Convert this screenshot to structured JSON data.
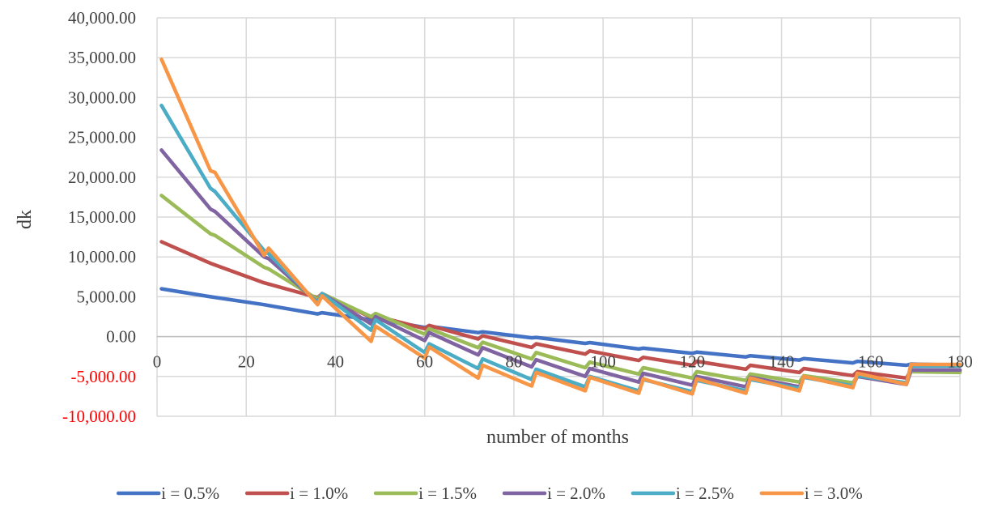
{
  "chart_data": {
    "type": "line",
    "title": "",
    "xlabel": "number of months",
    "ylabel": "dk",
    "xlim": [
      0,
      180
    ],
    "ylim": [
      -10000,
      40000
    ],
    "x_ticks": [
      "0",
      "20",
      "40",
      "60",
      "80",
      "100",
      "120",
      "140",
      "160",
      "180"
    ],
    "y_ticks": [
      "40,000.00",
      "35,000.00",
      "30,000.00",
      "25,000.00",
      "20,000.00",
      "15,000.00",
      "10,000.00",
      "5,000.00",
      "0.00",
      "-5,000.00",
      "-10,000.00"
    ],
    "grid": true,
    "legend_position": "bottom",
    "series": [
      {
        "name": "i = 0.5%",
        "color": "#4472c4",
        "points": [
          [
            1,
            6000
          ],
          [
            12,
            5000
          ],
          [
            24,
            4000
          ],
          [
            25,
            3900
          ],
          [
            36,
            2850
          ],
          [
            37,
            3000
          ],
          [
            48,
            2100
          ],
          [
            49,
            2200
          ],
          [
            60,
            1150
          ],
          [
            61,
            1300
          ],
          [
            72,
            500
          ],
          [
            73,
            600
          ],
          [
            84,
            -150
          ],
          [
            85,
            -100
          ],
          [
            96,
            -850
          ],
          [
            97,
            -750
          ],
          [
            108,
            -1550
          ],
          [
            109,
            -1450
          ],
          [
            120,
            -2100
          ],
          [
            121,
            -1950
          ],
          [
            132,
            -2550
          ],
          [
            133,
            -2400
          ],
          [
            144,
            -2950
          ],
          [
            145,
            -2750
          ],
          [
            156,
            -3300
          ],
          [
            157,
            -3100
          ],
          [
            168,
            -3600
          ],
          [
            169,
            -3450
          ],
          [
            180,
            -3600
          ]
        ]
      },
      {
        "name": "i = 1.0%",
        "color": "#c0504d",
        "points": [
          [
            1,
            11900
          ],
          [
            12,
            9200
          ],
          [
            24,
            6750
          ],
          [
            25,
            6600
          ],
          [
            36,
            4900
          ],
          [
            37,
            5400
          ],
          [
            48,
            2400
          ],
          [
            49,
            2600
          ],
          [
            60,
            1000
          ],
          [
            61,
            1400
          ],
          [
            72,
            -300
          ],
          [
            73,
            100
          ],
          [
            84,
            -1350
          ],
          [
            85,
            -900
          ],
          [
            96,
            -2200
          ],
          [
            97,
            -1800
          ],
          [
            108,
            -3000
          ],
          [
            109,
            -2600
          ],
          [
            120,
            -3600
          ],
          [
            121,
            -3100
          ],
          [
            132,
            -4100
          ],
          [
            133,
            -3600
          ],
          [
            144,
            -4500
          ],
          [
            145,
            -4000
          ],
          [
            156,
            -4900
          ],
          [
            157,
            -4400
          ],
          [
            168,
            -5200
          ],
          [
            169,
            -4200
          ],
          [
            180,
            -4300
          ]
        ]
      },
      {
        "name": "i = 1.5%",
        "color": "#9bbb59",
        "points": [
          [
            1,
            17700
          ],
          [
            12,
            12900
          ],
          [
            13,
            12700
          ],
          [
            24,
            8700
          ],
          [
            25,
            8500
          ],
          [
            36,
            4700
          ],
          [
            37,
            5400
          ],
          [
            48,
            2500
          ],
          [
            49,
            2900
          ],
          [
            60,
            300
          ],
          [
            61,
            1000
          ],
          [
            72,
            -1400
          ],
          [
            73,
            -700
          ],
          [
            84,
            -2800
          ],
          [
            85,
            -2000
          ],
          [
            96,
            -3900
          ],
          [
            97,
            -3200
          ],
          [
            108,
            -4700
          ],
          [
            109,
            -3900
          ],
          [
            120,
            -5200
          ],
          [
            121,
            -4400
          ],
          [
            132,
            -5500
          ],
          [
            133,
            -4700
          ],
          [
            144,
            -5700
          ],
          [
            145,
            -4900
          ],
          [
            156,
            -5800
          ],
          [
            157,
            -5000
          ],
          [
            168,
            -5900
          ],
          [
            169,
            -4400
          ],
          [
            180,
            -4500
          ]
        ]
      },
      {
        "name": "i = 2.0%",
        "color": "#8064a2",
        "points": [
          [
            1,
            23400
          ],
          [
            12,
            16000
          ],
          [
            13,
            15700
          ],
          [
            24,
            10000
          ],
          [
            25,
            9800
          ],
          [
            36,
            4300
          ],
          [
            37,
            5400
          ],
          [
            48,
            1600
          ],
          [
            49,
            2500
          ],
          [
            60,
            -500
          ],
          [
            61,
            500
          ],
          [
            72,
            -2300
          ],
          [
            73,
            -1400
          ],
          [
            84,
            -3800
          ],
          [
            85,
            -2900
          ],
          [
            96,
            -5000
          ],
          [
            97,
            -4000
          ],
          [
            108,
            -5700
          ],
          [
            109,
            -4600
          ],
          [
            120,
            -6100
          ],
          [
            121,
            -5000
          ],
          [
            132,
            -6300
          ],
          [
            133,
            -5100
          ],
          [
            144,
            -6300
          ],
          [
            145,
            -5100
          ],
          [
            156,
            -6200
          ],
          [
            157,
            -5000
          ],
          [
            168,
            -6000
          ],
          [
            169,
            -4200
          ],
          [
            180,
            -4200
          ]
        ]
      },
      {
        "name": "i = 2.5%",
        "color": "#4bacc6",
        "points": [
          [
            1,
            29000
          ],
          [
            12,
            18600
          ],
          [
            13,
            18200
          ],
          [
            24,
            10800
          ],
          [
            25,
            10400
          ],
          [
            36,
            4200
          ],
          [
            37,
            5400
          ],
          [
            48,
            800
          ],
          [
            49,
            2100
          ],
          [
            60,
            -2000
          ],
          [
            61,
            -900
          ],
          [
            72,
            -4000
          ],
          [
            73,
            -2800
          ],
          [
            84,
            -5400
          ],
          [
            85,
            -4100
          ],
          [
            96,
            -6300
          ],
          [
            97,
            -5000
          ],
          [
            108,
            -6800
          ],
          [
            109,
            -5400
          ],
          [
            120,
            -6900
          ],
          [
            121,
            -5500
          ],
          [
            132,
            -6800
          ],
          [
            133,
            -5400
          ],
          [
            144,
            -6500
          ],
          [
            145,
            -5100
          ],
          [
            156,
            -6200
          ],
          [
            157,
            -4900
          ],
          [
            168,
            -5800
          ],
          [
            169,
            -3700
          ],
          [
            180,
            -3700
          ]
        ]
      },
      {
        "name": "i = 3.0%",
        "color": "#f79646",
        "points": [
          [
            1,
            34800
          ],
          [
            12,
            20800
          ],
          [
            13,
            20600
          ],
          [
            24,
            10200
          ],
          [
            25,
            11100
          ],
          [
            36,
            4000
          ],
          [
            37,
            5100
          ],
          [
            48,
            -600
          ],
          [
            49,
            1300
          ],
          [
            60,
            -2700
          ],
          [
            61,
            -1300
          ],
          [
            72,
            -5200
          ],
          [
            73,
            -3600
          ],
          [
            84,
            -6200
          ],
          [
            85,
            -4500
          ],
          [
            96,
            -6800
          ],
          [
            97,
            -5100
          ],
          [
            108,
            -7100
          ],
          [
            109,
            -5300
          ],
          [
            120,
            -7200
          ],
          [
            121,
            -5300
          ],
          [
            132,
            -7100
          ],
          [
            133,
            -5200
          ],
          [
            144,
            -6800
          ],
          [
            145,
            -5000
          ],
          [
            156,
            -6400
          ],
          [
            157,
            -4600
          ],
          [
            168,
            -6000
          ],
          [
            169,
            -3500
          ],
          [
            180,
            -3500
          ]
        ]
      }
    ]
  }
}
